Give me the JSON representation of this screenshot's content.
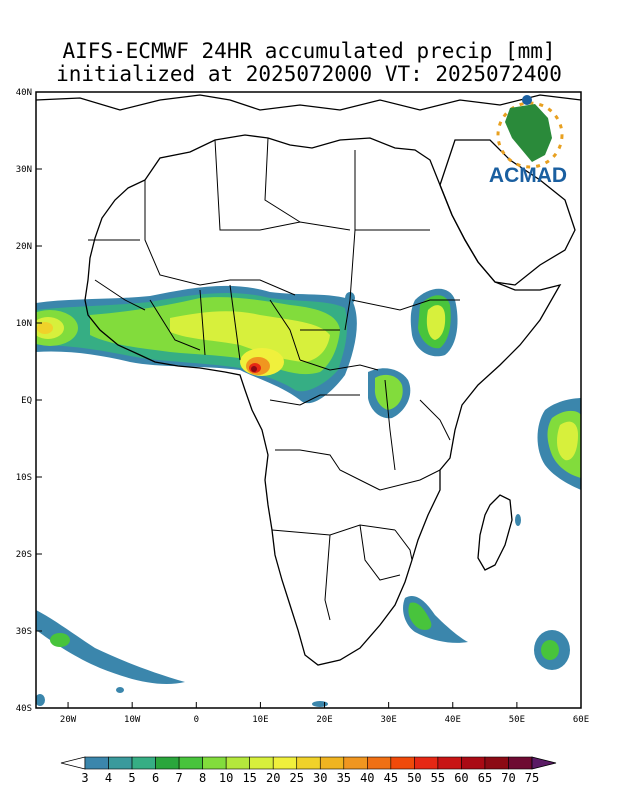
{
  "title": {
    "line1": "AIFS-ECMWF 24HR accumulated precip [mm]",
    "line2": "initialized at 2025072000 VT: 2025072400"
  },
  "logo": {
    "text": "ACMAD",
    "icon": "africa-sun-logo"
  },
  "axes": {
    "lon_labels": [
      "20W",
      "10W",
      "0",
      "10E",
      "20E",
      "30E",
      "40E",
      "50E",
      "60E"
    ],
    "lat_labels": [
      "40N",
      "30N",
      "20N",
      "10N",
      "EQ",
      "10S",
      "20S",
      "30S",
      "40S"
    ],
    "lon_range": [
      -25,
      60
    ],
    "lat_range": [
      -40,
      40
    ]
  },
  "colorbar": {
    "labels": [
      "3",
      "4",
      "5",
      "6",
      "7",
      "8",
      "10",
      "15",
      "20",
      "25",
      "30",
      "35",
      "40",
      "45",
      "50",
      "55",
      "60",
      "65",
      "70",
      "75"
    ],
    "colors": [
      "#ffffff",
      "#3b86ac",
      "#3a9a9c",
      "#36ae84",
      "#2aa63c",
      "#48c43c",
      "#82dc3c",
      "#b4e83c",
      "#d7f03c",
      "#f0f03c",
      "#f0d22a",
      "#f0b420",
      "#f09620",
      "#f07014",
      "#f04a0a",
      "#e62814",
      "#c81414",
      "#aa0a14",
      "#8c0a14",
      "#6e0a32",
      "#5a1a64"
    ]
  },
  "chart_data": {
    "type": "heatmap",
    "variable": "24HR accumulated precip [mm]",
    "levels": [
      3,
      4,
      5,
      6,
      7,
      8,
      10,
      15,
      20,
      25,
      30,
      35,
      40,
      45,
      50,
      55,
      60,
      65,
      70,
      75
    ],
    "regions": [
      {
        "lon": -23,
        "lat": 9.5,
        "max_mm": 20
      },
      {
        "lon": -10,
        "lat": 9,
        "max_mm": 15
      },
      {
        "lon": 0,
        "lat": 10,
        "max_mm": 15
      },
      {
        "lon": 10,
        "lat": 8,
        "max_mm": 25
      },
      {
        "lon": 9,
        "lat": 4.5,
        "max_mm": 50
      },
      {
        "lon": 18,
        "lat": 9,
        "max_mm": 20
      },
      {
        "lon": 38,
        "lat": 11,
        "max_mm": 20
      },
      {
        "lon": 31,
        "lat": 2,
        "max_mm": 15
      },
      {
        "lon": 57,
        "lat": -5,
        "max_mm": 20
      },
      {
        "lon": 34,
        "lat": -28,
        "max_mm": 10
      },
      {
        "lon": 53,
        "lat": -32,
        "max_mm": 8
      },
      {
        "lon": -20,
        "lat": -30,
        "max_mm": 6
      }
    ]
  }
}
